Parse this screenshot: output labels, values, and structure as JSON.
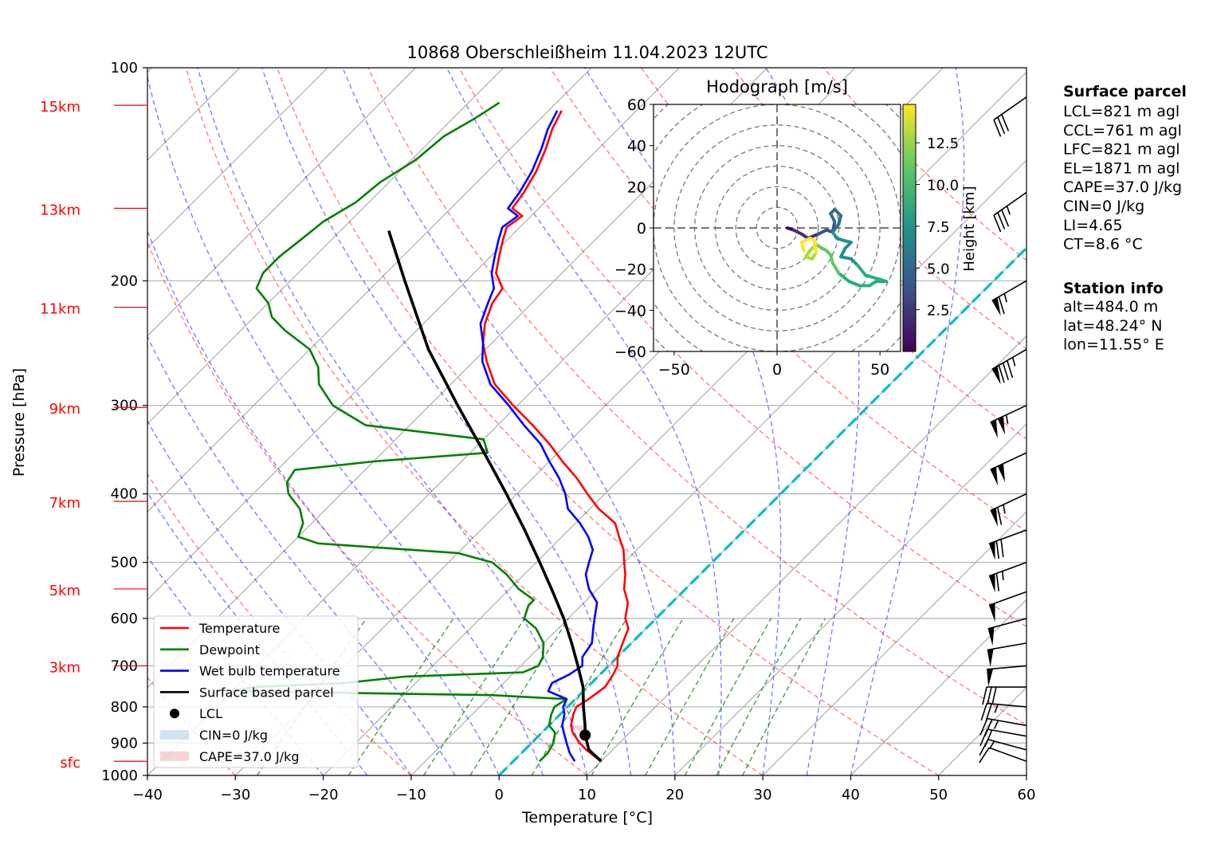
{
  "chart_data": {
    "type": "skew-t",
    "title": "10868 Oberschleißheim 11.04.2023 12UTC",
    "xlabel": "Temperature [°C]",
    "ylabel": "Pressure [hPa]",
    "xlim": [
      -40,
      60
    ],
    "ylim": [
      1000,
      100
    ],
    "x_ticks": [
      -40,
      -30,
      -20,
      -10,
      0,
      10,
      20,
      30,
      40,
      50,
      60
    ],
    "y_ticks": [
      100,
      200,
      300,
      400,
      500,
      600,
      700,
      800,
      900,
      1000
    ],
    "height_labels": [
      {
        "label": "sfc",
        "p": 955
      },
      {
        "label": "3km",
        "p": 700
      },
      {
        "label": "5km",
        "p": 545
      },
      {
        "label": "7km",
        "p": 410
      },
      {
        "label": "9km",
        "p": 302
      },
      {
        "label": "11km",
        "p": 218
      },
      {
        "label": "13km",
        "p": 158
      },
      {
        "label": "15km",
        "p": 113
      }
    ],
    "legend": {
      "position": "lower-left",
      "entries": [
        "Temperature",
        "Dewpoint",
        "Wet bulb temperature",
        "Surface based parcel",
        "LCL",
        "CIN=0 J/kg",
        "CAPE=37.0 J/kg"
      ]
    },
    "series": [
      {
        "name": "Temperature",
        "color": "#ff0000",
        "points": [
          [
            955,
            10.0
          ],
          [
            920,
            7.0
          ],
          [
            900,
            5.5
          ],
          [
            870,
            3.5
          ],
          [
            850,
            2.5
          ],
          [
            820,
            1.5
          ],
          [
            800,
            1.0
          ],
          [
            780,
            1.5
          ],
          [
            750,
            2.0
          ],
          [
            720,
            1.5
          ],
          [
            700,
            1.0
          ],
          [
            680,
            0.0
          ],
          [
            650,
            -1.0
          ],
          [
            620,
            -2.0
          ],
          [
            600,
            -3.5
          ],
          [
            570,
            -5.0
          ],
          [
            545,
            -7.0
          ],
          [
            520,
            -8.5
          ],
          [
            500,
            -10.0
          ],
          [
            480,
            -11.5
          ],
          [
            460,
            -13.5
          ],
          [
            440,
            -15.5
          ],
          [
            420,
            -19.0
          ],
          [
            400,
            -22.0
          ],
          [
            380,
            -25.0
          ],
          [
            360,
            -28.5
          ],
          [
            340,
            -32.0
          ],
          [
            320,
            -36.0
          ],
          [
            300,
            -40.5
          ],
          [
            280,
            -45.0
          ],
          [
            260,
            -48.5
          ],
          [
            245,
            -51.0
          ],
          [
            230,
            -53.0
          ],
          [
            215,
            -54.5
          ],
          [
            205,
            -55.0
          ],
          [
            195,
            -57.5
          ],
          [
            185,
            -59.0
          ],
          [
            175,
            -60.5
          ],
          [
            168,
            -61.5
          ],
          [
            162,
            -61.0
          ],
          [
            158,
            -63.0
          ],
          [
            150,
            -63.5
          ],
          [
            140,
            -64.5
          ],
          [
            130,
            -66.0
          ],
          [
            122,
            -67.5
          ],
          [
            115,
            -68.5
          ]
        ]
      },
      {
        "name": "Dewpoint",
        "color": "#008000",
        "points": [
          [
            955,
            3.0
          ],
          [
            930,
            3.0
          ],
          [
            900,
            2.5
          ],
          [
            870,
            1.5
          ],
          [
            850,
            0.0
          ],
          [
            820,
            -1.0
          ],
          [
            800,
            -1.5
          ],
          [
            780,
            -1.0
          ],
          [
            770,
            -10.0
          ],
          [
            760,
            -40.0
          ],
          [
            750,
            -38.0
          ],
          [
            740,
            -28.0
          ],
          [
            725,
            -22.0
          ],
          [
            715,
            -9.0
          ],
          [
            700,
            -8.0
          ],
          [
            680,
            -8.5
          ],
          [
            650,
            -10.0
          ],
          [
            620,
            -12.5
          ],
          [
            600,
            -15.0
          ],
          [
            575,
            -16.0
          ],
          [
            565,
            -16.0
          ],
          [
            545,
            -19.0
          ],
          [
            520,
            -22.0
          ],
          [
            500,
            -25.0
          ],
          [
            485,
            -30.0
          ],
          [
            470,
            -47.0
          ],
          [
            460,
            -50.0
          ],
          [
            440,
            -51.0
          ],
          [
            420,
            -53.0
          ],
          [
            400,
            -56.0
          ],
          [
            385,
            -57.5
          ],
          [
            370,
            -58.0
          ],
          [
            360,
            -50.0
          ],
          [
            350,
            -38.0
          ],
          [
            335,
            -40.0
          ],
          [
            320,
            -55.0
          ],
          [
            300,
            -61.0
          ],
          [
            280,
            -65.0
          ],
          [
            265,
            -67.0
          ],
          [
            250,
            -70.0
          ],
          [
            235,
            -75.0
          ],
          [
            225,
            -78.0
          ],
          [
            215,
            -80.0
          ],
          [
            205,
            -83.0
          ],
          [
            195,
            -84.0
          ],
          [
            185,
            -84.0
          ],
          [
            175,
            -83.5
          ],
          [
            165,
            -83.0
          ],
          [
            155,
            -81.5
          ],
          [
            145,
            -81.0
          ],
          [
            135,
            -79.5
          ],
          [
            125,
            -79.0
          ],
          [
            118,
            -77.5
          ],
          [
            112,
            -76.5
          ]
        ]
      },
      {
        "name": "Wet bulb temperature",
        "color": "#0000ff",
        "points": [
          [
            955,
            7.0
          ],
          [
            930,
            5.5
          ],
          [
            900,
            4.0
          ],
          [
            870,
            2.5
          ],
          [
            850,
            1.5
          ],
          [
            820,
            0.5
          ],
          [
            800,
            -0.5
          ],
          [
            780,
            -1.0
          ],
          [
            760,
            -4.0
          ],
          [
            740,
            -4.5
          ],
          [
            720,
            -3.5
          ],
          [
            700,
            -3.0
          ],
          [
            680,
            -4.0
          ],
          [
            650,
            -4.5
          ],
          [
            620,
            -6.0
          ],
          [
            600,
            -7.0
          ],
          [
            570,
            -8.5
          ],
          [
            545,
            -11.0
          ],
          [
            520,
            -13.0
          ],
          [
            500,
            -14.0
          ],
          [
            480,
            -15.0
          ],
          [
            460,
            -17.0
          ],
          [
            440,
            -19.5
          ],
          [
            420,
            -22.5
          ],
          [
            400,
            -24.5
          ],
          [
            380,
            -27.0
          ],
          [
            360,
            -30.0
          ],
          [
            340,
            -33.0
          ],
          [
            320,
            -37.0
          ],
          [
            300,
            -41.0
          ],
          [
            280,
            -45.5
          ],
          [
            260,
            -49.0
          ],
          [
            245,
            -51.0
          ],
          [
            230,
            -53.5
          ],
          [
            215,
            -55.0
          ],
          [
            205,
            -56.0
          ],
          [
            195,
            -58.0
          ],
          [
            185,
            -59.5
          ],
          [
            175,
            -61.0
          ],
          [
            168,
            -62.0
          ],
          [
            162,
            -61.5
          ],
          [
            158,
            -63.5
          ],
          [
            150,
            -64.0
          ],
          [
            140,
            -65.0
          ],
          [
            130,
            -66.5
          ],
          [
            122,
            -68.0
          ],
          [
            115,
            -69.0
          ]
        ]
      },
      {
        "name": "Surface based parcel",
        "color": "#000000",
        "points": [
          [
            955,
            10.0
          ],
          [
            920,
            7.3
          ],
          [
            877,
            5.2
          ],
          [
            850,
            4.1
          ],
          [
            800,
            1.8
          ],
          [
            750,
            -0.5
          ],
          [
            700,
            -3.5
          ],
          [
            650,
            -6.8
          ],
          [
            600,
            -10.5
          ],
          [
            550,
            -14.8
          ],
          [
            500,
            -19.6
          ],
          [
            450,
            -25.0
          ],
          [
            400,
            -31.2
          ],
          [
            350,
            -38.4
          ],
          [
            300,
            -46.8
          ],
          [
            250,
            -56.5
          ],
          [
            200,
            -67.0
          ],
          [
            170,
            -74.5
          ]
        ]
      }
    ],
    "lcl": {
      "label": "LCL",
      "p": 877,
      "t": 5.2
    },
    "isotherm_0": {
      "color": "#00bfbf"
    },
    "wind_barbs": [
      {
        "p": 955,
        "speed_kt": 10,
        "dir": 250
      },
      {
        "p": 920,
        "speed_kt": 15,
        "dir": 255
      },
      {
        "p": 880,
        "speed_kt": 20,
        "dir": 260
      },
      {
        "p": 850,
        "speed_kt": 25,
        "dir": 260
      },
      {
        "p": 800,
        "speed_kt": 25,
        "dir": 265
      },
      {
        "p": 750,
        "speed_kt": 30,
        "dir": 270
      },
      {
        "p": 700,
        "speed_kt": 50,
        "dir": 275
      },
      {
        "p": 650,
        "speed_kt": 50,
        "dir": 280
      },
      {
        "p": 600,
        "speed_kt": 50,
        "dir": 285
      },
      {
        "p": 550,
        "speed_kt": 50,
        "dir": 290
      },
      {
        "p": 500,
        "speed_kt": 65,
        "dir": 290
      },
      {
        "p": 450,
        "speed_kt": 70,
        "dir": 290
      },
      {
        "p": 400,
        "speed_kt": 65,
        "dir": 295
      },
      {
        "p": 350,
        "speed_kt": 100,
        "dir": 295
      },
      {
        "p": 300,
        "speed_kt": 105,
        "dir": 295
      },
      {
        "p": 250,
        "speed_kt": 85,
        "dir": 300
      },
      {
        "p": 200,
        "speed_kt": 65,
        "dir": 300
      },
      {
        "p": 150,
        "speed_kt": 35,
        "dir": 305
      },
      {
        "p": 110,
        "speed_kt": 30,
        "dir": 305
      }
    ],
    "hodograph": {
      "title": "Hodograph [m/s]",
      "xlim": [
        -60,
        60
      ],
      "ylim": [
        -60,
        60
      ],
      "x_ticks": [
        -50,
        0,
        50
      ],
      "y_ticks": [
        60,
        40,
        20,
        0,
        -20,
        -40,
        -60
      ],
      "colorbar_label": "Height [km]",
      "colorbar_ticks": [
        "2.5",
        "5.0",
        "7.5",
        "10.0",
        "12.5"
      ],
      "points": [
        [
          5,
          0,
          0.5
        ],
        [
          8,
          -1,
          1.0
        ],
        [
          12,
          -3,
          2.0
        ],
        [
          15,
          -5,
          2.5
        ],
        [
          20,
          -3,
          3.0
        ],
        [
          24,
          -1,
          3.5
        ],
        [
          27,
          -2,
          4.0
        ],
        [
          28,
          3,
          4.5
        ],
        [
          26,
          7,
          5.0
        ],
        [
          28,
          9,
          5.3
        ],
        [
          31,
          6,
          5.6
        ],
        [
          30,
          2,
          6.0
        ],
        [
          27,
          -2,
          6.3
        ],
        [
          29,
          -5,
          6.6
        ],
        [
          32,
          -6,
          6.9
        ],
        [
          36,
          -7,
          7.2
        ],
        [
          33,
          -10,
          7.5
        ],
        [
          31,
          -14,
          7.8
        ],
        [
          36,
          -15,
          8.0
        ],
        [
          39,
          -18,
          8.2
        ],
        [
          43,
          -23,
          8.4
        ],
        [
          50,
          -25,
          8.6
        ],
        [
          53,
          -26,
          8.8
        ],
        [
          48,
          -26,
          9.0
        ],
        [
          45,
          -28,
          9.2
        ],
        [
          40,
          -28,
          9.4
        ],
        [
          35,
          -26,
          9.6
        ],
        [
          30,
          -22,
          9.8
        ],
        [
          27,
          -17,
          10.0
        ],
        [
          26,
          -13,
          10.3
        ],
        [
          24,
          -11,
          10.6
        ],
        [
          22,
          -10,
          11.0
        ],
        [
          19,
          -8,
          11.4
        ],
        [
          16,
          -11,
          11.8
        ],
        [
          14,
          -14,
          12.2
        ],
        [
          17,
          -15,
          12.6
        ],
        [
          19,
          -12,
          13.0
        ],
        [
          18,
          -6,
          13.4
        ],
        [
          16,
          -5,
          13.8
        ],
        [
          12,
          -7,
          14.2
        ],
        [
          13,
          -11,
          14.6
        ]
      ]
    },
    "surface_parcel": {
      "title": "Surface parcel",
      "lines": [
        "LCL=821 m agl",
        "CCL=761 m agl",
        "LFC=821 m agl",
        "EL=1871 m agl",
        "CAPE=37.0 J/kg",
        "CIN=0 J/kg",
        "LI=4.65",
        "CT=8.6 °C"
      ]
    },
    "station_info": {
      "title": "Station info",
      "lines": [
        "alt=484.0 m",
        "lat=48.24° N",
        "lon=11.55° E"
      ]
    }
  }
}
